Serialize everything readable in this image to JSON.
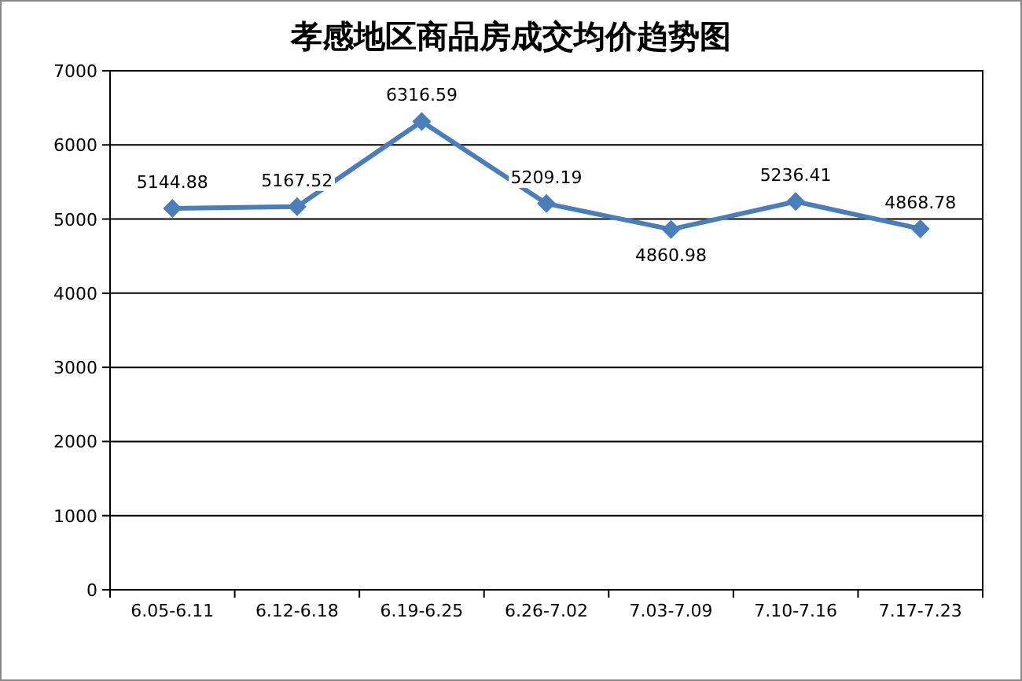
{
  "chart_data": {
    "type": "line",
    "title": "孝感地区商品房成交均价趋势图",
    "categories": [
      "6.05-6.11",
      "6.12-6.18",
      "6.19-6.25",
      "6.26-7.02",
      "7.03-7.09",
      "7.10-7.16",
      "7.17-7.23"
    ],
    "values": [
      5144.88,
      5167.52,
      6316.59,
      5209.19,
      4860.98,
      5236.41,
      4868.78
    ],
    "color": "#4a7ebb",
    "ylim": [
      0,
      7000
    ],
    "yticks": [
      0,
      1000,
      2000,
      3000,
      4000,
      5000,
      6000,
      7000
    ],
    "grid": "y",
    "marker": "diamond",
    "line_style": "solid",
    "data_labels": true
  }
}
